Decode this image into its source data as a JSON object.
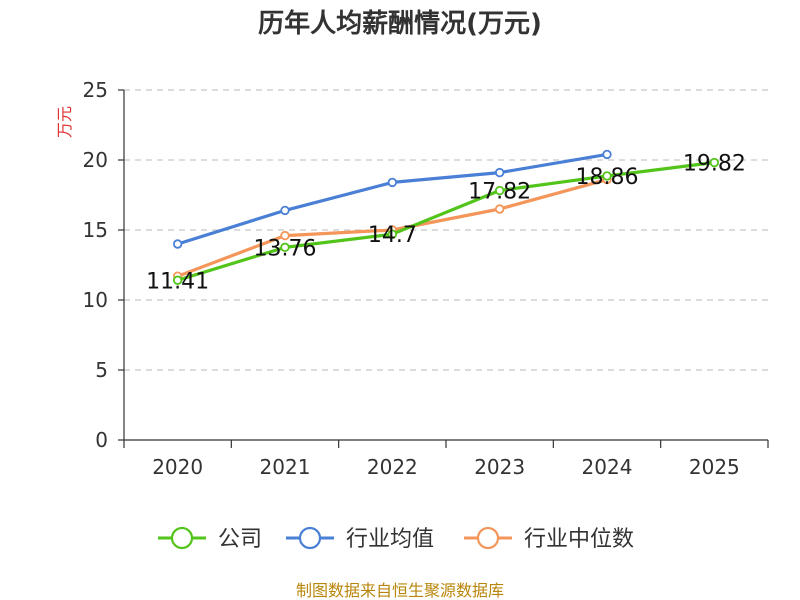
{
  "chart_data": {
    "type": "line",
    "title": "历年人均薪酬情况(万元)",
    "ylabel": "万元",
    "xlabel": "",
    "categories": [
      "2020",
      "2021",
      "2022",
      "2023",
      "2024",
      "2025"
    ],
    "ylim": [
      0,
      25
    ],
    "yticks": [
      0,
      5,
      10,
      15,
      20,
      25
    ],
    "grid": true,
    "legend_position": "bottom",
    "series": [
      {
        "name": "公司",
        "color": "#52c41a",
        "values": [
          11.41,
          13.76,
          14.7,
          17.82,
          18.86,
          19.82
        ],
        "labels": [
          "11.41",
          "13.76",
          "14.7",
          "17.82",
          "18.86",
          "19.82"
        ]
      },
      {
        "name": "行业均值",
        "color": "#4a7fd6",
        "values": [
          14.0,
          16.4,
          18.4,
          19.1,
          20.4,
          null
        ]
      },
      {
        "name": "行业中位数",
        "color": "#f4965a",
        "values": [
          11.7,
          14.6,
          15.0,
          16.5,
          18.6,
          null
        ]
      }
    ]
  },
  "footer": {
    "source": "制图数据来自恒生聚源数据库"
  }
}
